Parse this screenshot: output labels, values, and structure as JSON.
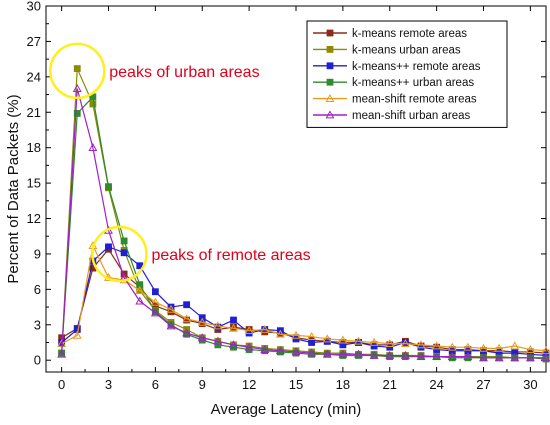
{
  "chart_data": {
    "type": "line",
    "xlabel": "Average Latency (min)",
    "ylabel": "Percent of Data Packets (%)",
    "xlim": [
      -1,
      31
    ],
    "ylim": [
      -1,
      30
    ],
    "x_ticks": [
      0,
      3,
      6,
      9,
      12,
      15,
      18,
      21,
      24,
      27,
      30
    ],
    "y_ticks": [
      0,
      3,
      6,
      9,
      12,
      15,
      18,
      21,
      24,
      27,
      30
    ],
    "grid": false,
    "legend_position": "top-right",
    "x": [
      0,
      1,
      2,
      3,
      4,
      5,
      6,
      7,
      8,
      9,
      10,
      11,
      12,
      13,
      14,
      15,
      16,
      17,
      18,
      19,
      20,
      21,
      22,
      23,
      24,
      25,
      26,
      27,
      28,
      29,
      30,
      31
    ],
    "series": [
      {
        "name": "k-means remote areas",
        "color": "#8b2c16",
        "marker": "square",
        "values": [
          1.9,
          2.7,
          7.8,
          9.4,
          7.3,
          6.2,
          4.6,
          4.1,
          3.4,
          3.1,
          2.6,
          2.8,
          2.6,
          2.4,
          2.3,
          1.9,
          1.7,
          1.6,
          1.5,
          1.5,
          1.3,
          1.3,
          1.6,
          1.2,
          1.1,
          0.9,
          0.9,
          0.8,
          0.8,
          0.7,
          0.7,
          0.6
        ]
      },
      {
        "name": "k-means urban areas",
        "color": "#8b8b00",
        "marker": "square",
        "values": [
          0.6,
          24.7,
          21.7,
          14.6,
          9.3,
          5.9,
          4.2,
          3.2,
          2.6,
          1.9,
          1.6,
          1.3,
          1.2,
          1.0,
          0.9,
          0.8,
          0.7,
          0.6,
          0.6,
          0.5,
          0.5,
          0.4,
          0.4,
          0.4,
          0.3,
          0.3,
          0.3,
          0.3,
          0.3,
          0.2,
          0.2,
          0.2
        ]
      },
      {
        "name": "k-means++ remote areas",
        "color": "#1f1fd6",
        "marker": "square",
        "values": [
          1.5,
          2.6,
          8.4,
          9.6,
          9.1,
          8.0,
          5.8,
          4.5,
          4.7,
          3.6,
          2.8,
          3.4,
          2.3,
          2.6,
          2.5,
          1.8,
          1.5,
          1.6,
          1.3,
          1.5,
          1.2,
          1.1,
          1.5,
          1.1,
          0.9,
          0.8,
          0.8,
          0.8,
          0.6,
          0.6,
          0.5,
          0.4
        ]
      },
      {
        "name": "k-means++ urban areas",
        "color": "#2e8b2e",
        "marker": "square",
        "values": [
          0.6,
          20.9,
          22.3,
          14.7,
          10.1,
          6.4,
          4.1,
          3.0,
          2.2,
          1.7,
          1.3,
          1.1,
          0.9,
          0.8,
          0.7,
          0.6,
          0.5,
          0.5,
          0.4,
          0.4,
          0.4,
          0.3,
          0.3,
          0.3,
          0.3,
          0.2,
          0.2,
          0.2,
          0.2,
          0.2,
          0.2,
          0.1
        ]
      },
      {
        "name": "mean-shift remote areas",
        "color": "#e89c1a",
        "marker": "triangle",
        "values": [
          1.4,
          2.1,
          9.7,
          7.0,
          6.8,
          5.9,
          4.9,
          4.3,
          3.5,
          3.2,
          2.9,
          2.7,
          2.5,
          2.6,
          2.2,
          2.1,
          2.0,
          1.8,
          1.7,
          1.6,
          1.5,
          1.4,
          1.4,
          1.3,
          1.2,
          1.1,
          1.1,
          1.0,
          1.0,
          1.2,
          0.9,
          0.8
        ]
      },
      {
        "name": "mean-shift urban areas",
        "color": "#a020c8",
        "marker": "triangle",
        "values": [
          0.5,
          23.0,
          18.0,
          11.0,
          7.0,
          5.0,
          4.0,
          2.9,
          2.3,
          1.9,
          1.6,
          1.3,
          1.1,
          0.9,
          0.8,
          0.7,
          0.6,
          0.5,
          0.5,
          0.5,
          0.4,
          0.4,
          0.4,
          0.3,
          0.3,
          0.3,
          0.3,
          0.2,
          0.2,
          0.2,
          0.2,
          0.2
        ]
      }
    ],
    "annotations": [
      {
        "text": "peaks of urban areas",
        "circle_center": [
          1.0,
          24.5
        ],
        "color": "#e0001b"
      },
      {
        "text": "peaks of remote areas",
        "circle_center": [
          3.7,
          9.0
        ],
        "color": "#e0001b"
      }
    ]
  }
}
